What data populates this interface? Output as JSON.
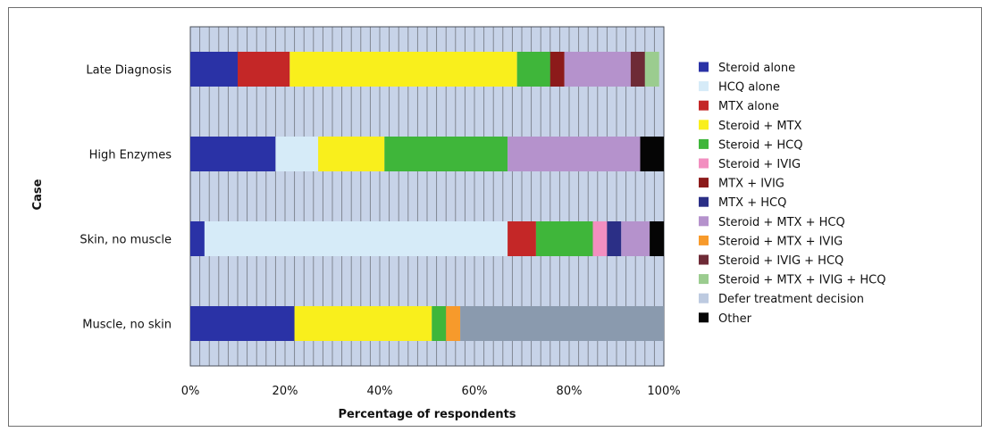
{
  "chart_data": {
    "type": "bar",
    "orientation": "horizontal",
    "stacked": true,
    "percent_stacked": true,
    "title": "",
    "xlabel": "Percentage of respondents",
    "ylabel": "Case",
    "xlim": [
      0,
      100
    ],
    "x_ticks": [
      "0%",
      "20%",
      "40%",
      "60%",
      "80%",
      "100%"
    ],
    "grid": "vertical gridlines every 2%",
    "legend_position": "right",
    "categories": [
      "Late Diagnosis",
      "High Enzymes",
      "Skin, no muscle",
      "Muscle, no skin"
    ],
    "series": [
      {
        "name": "Steroid alone",
        "color": "#2a32a6",
        "values": [
          10,
          18,
          3,
          22
        ]
      },
      {
        "name": "HCQ alone",
        "color": "#d6ebf8",
        "values": [
          0,
          9,
          64,
          0
        ]
      },
      {
        "name": "MTX alone",
        "color": "#c42727",
        "values": [
          11,
          0,
          6,
          0
        ]
      },
      {
        "name": "Steroid + MTX",
        "color": "#f9ef1c",
        "values": [
          48,
          14,
          0,
          29
        ]
      },
      {
        "name": "Steroid + HCQ",
        "color": "#3fb63a",
        "values": [
          7,
          26,
          12,
          3
        ]
      },
      {
        "name": "Steroid + IVIG",
        "color": "#f28fc0",
        "values": [
          0,
          0,
          3,
          0
        ]
      },
      {
        "name": "MTX + IVIG",
        "color": "#8c1a1a",
        "values": [
          3,
          0,
          0,
          0
        ]
      },
      {
        "name": "MTX + HCQ",
        "color": "#2b2f86",
        "values": [
          0,
          0,
          3,
          0
        ]
      },
      {
        "name": "Steroid + MTX + HCQ",
        "color": "#b592cc",
        "values": [
          14,
          28,
          6,
          0
        ]
      },
      {
        "name": "Steroid + MTX + IVIG",
        "color": "#f79a2b",
        "values": [
          0,
          0,
          0,
          3
        ]
      },
      {
        "name": "Steroid + IVIG + HCQ",
        "color": "#6e2a36",
        "values": [
          3,
          0,
          0,
          0
        ]
      },
      {
        "name": "Steroid + MTX + IVIG + HCQ",
        "color": "#9bcc8f",
        "values": [
          3,
          0,
          0,
          0
        ]
      },
      {
        "name": "Defer treatment decision",
        "color": "#8a9aae",
        "legend_color": "#bdcae0",
        "values": [
          0,
          0,
          0,
          43
        ]
      },
      {
        "name": "Other",
        "color": "#050505",
        "values": [
          0,
          5,
          3,
          0
        ]
      }
    ]
  }
}
